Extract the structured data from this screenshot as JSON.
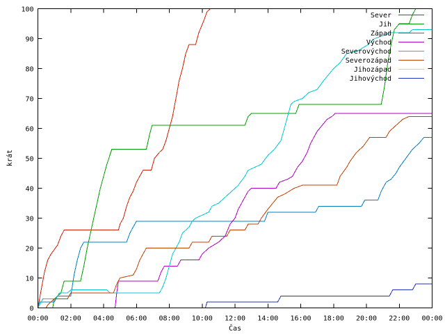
{
  "chart_data": {
    "type": "line",
    "title": "",
    "xlabel": "Čas",
    "ylabel": "krát",
    "xlim": [
      0,
      24
    ],
    "ylim": [
      0,
      100
    ],
    "x_unit": "hours",
    "x_tick_labels": [
      "00:00",
      "02:00",
      "04:00",
      "06:00",
      "08:00",
      "10:00",
      "12:00",
      "14:00",
      "16:00",
      "18:00",
      "20:00",
      "22:00",
      "00:00"
    ],
    "y_ticks": [
      0,
      10,
      20,
      30,
      40,
      50,
      60,
      70,
      80,
      90,
      100
    ],
    "grid": false,
    "legend_position": "top-right",
    "series": [
      {
        "name": "Sever",
        "color": "#d02000",
        "points": [
          [
            0,
            0
          ],
          [
            0.2,
            6
          ],
          [
            0.4,
            12
          ],
          [
            0.6,
            16
          ],
          [
            0.8,
            18
          ],
          [
            1.2,
            21
          ],
          [
            1.4,
            24
          ],
          [
            1.6,
            26
          ],
          [
            4.9,
            26
          ],
          [
            5.0,
            28
          ],
          [
            5.2,
            30
          ],
          [
            5.4,
            34
          ],
          [
            5.6,
            37
          ],
          [
            5.8,
            39
          ],
          [
            6.0,
            42
          ],
          [
            6.2,
            44
          ],
          [
            6.4,
            46
          ],
          [
            6.9,
            46
          ],
          [
            7.1,
            50
          ],
          [
            7.4,
            52
          ],
          [
            7.6,
            53
          ],
          [
            7.8,
            56
          ],
          [
            8.0,
            60
          ],
          [
            8.2,
            64
          ],
          [
            8.4,
            70
          ],
          [
            8.6,
            76
          ],
          [
            8.8,
            80
          ],
          [
            9.0,
            85
          ],
          [
            9.2,
            88
          ],
          [
            9.6,
            88
          ],
          [
            9.8,
            92
          ],
          [
            10.1,
            96
          ],
          [
            10.3,
            99
          ],
          [
            10.5,
            100
          ]
        ]
      },
      {
        "name": "Jih",
        "color": "#00a000",
        "points": [
          [
            0,
            0
          ],
          [
            0.9,
            0
          ],
          [
            1.0,
            3
          ],
          [
            1.4,
            5
          ],
          [
            1.6,
            9
          ],
          [
            2.6,
            9
          ],
          [
            2.8,
            14
          ],
          [
            3.0,
            20
          ],
          [
            3.4,
            30
          ],
          [
            3.8,
            40
          ],
          [
            4.2,
            48
          ],
          [
            4.5,
            53
          ],
          [
            6.6,
            53
          ],
          [
            6.8,
            58
          ],
          [
            6.95,
            61
          ],
          [
            12.6,
            61
          ],
          [
            12.8,
            64
          ],
          [
            13.0,
            65
          ],
          [
            15.7,
            65
          ],
          [
            15.9,
            68
          ],
          [
            20.9,
            68
          ],
          [
            21.1,
            74
          ],
          [
            21.3,
            82
          ],
          [
            21.5,
            88
          ],
          [
            21.7,
            93
          ],
          [
            22.0,
            95
          ],
          [
            22.6,
            95
          ],
          [
            22.8,
            98
          ],
          [
            23.0,
            100
          ]
        ]
      },
      {
        "name": "Západ",
        "color": "#0080c0",
        "points": [
          [
            0,
            0
          ],
          [
            0.1,
            2
          ],
          [
            1.0,
            2
          ],
          [
            1.2,
            4
          ],
          [
            2.0,
            4
          ],
          [
            2.2,
            11
          ],
          [
            2.4,
            16
          ],
          [
            2.6,
            20
          ],
          [
            2.8,
            22
          ],
          [
            5.4,
            22
          ],
          [
            5.6,
            25
          ],
          [
            5.8,
            27
          ],
          [
            6.0,
            29
          ],
          [
            13.8,
            29
          ],
          [
            14.0,
            32
          ],
          [
            16.9,
            32
          ],
          [
            17.1,
            34
          ],
          [
            19.7,
            34
          ],
          [
            19.9,
            36
          ],
          [
            20.7,
            36
          ],
          [
            20.9,
            39
          ],
          [
            21.2,
            42
          ],
          [
            21.5,
            43
          ],
          [
            21.8,
            45
          ],
          [
            22.0,
            47
          ],
          [
            22.4,
            50
          ],
          [
            22.8,
            53
          ],
          [
            23.2,
            55
          ],
          [
            23.5,
            57
          ],
          [
            24,
            57
          ]
        ]
      },
      {
        "name": "Východ",
        "color": "#b000c0",
        "points": [
          [
            4.7,
            0
          ],
          [
            4.8,
            5
          ],
          [
            4.9,
            9
          ],
          [
            7.3,
            9
          ],
          [
            7.5,
            12
          ],
          [
            7.7,
            14
          ],
          [
            8.5,
            14
          ],
          [
            8.7,
            16
          ],
          [
            9.8,
            16
          ],
          [
            10.0,
            18
          ],
          [
            10.4,
            20
          ],
          [
            11.0,
            22
          ],
          [
            11.4,
            24
          ],
          [
            11.7,
            28
          ],
          [
            12.0,
            30
          ],
          [
            12.2,
            33
          ],
          [
            12.4,
            35
          ],
          [
            12.6,
            37
          ],
          [
            12.8,
            39
          ],
          [
            13.0,
            40
          ],
          [
            14.5,
            40
          ],
          [
            14.7,
            42
          ],
          [
            15.2,
            43
          ],
          [
            15.5,
            44
          ],
          [
            15.8,
            47
          ],
          [
            16.1,
            49
          ],
          [
            16.4,
            52
          ],
          [
            16.6,
            55
          ],
          [
            16.8,
            57
          ],
          [
            17.0,
            59
          ],
          [
            17.3,
            61
          ],
          [
            17.6,
            63
          ],
          [
            17.9,
            64
          ],
          [
            18.1,
            65
          ],
          [
            24,
            65
          ]
        ]
      },
      {
        "name": "Severovýchod",
        "color": "#00c8d0",
        "points": [
          [
            0,
            0
          ],
          [
            0.1,
            1
          ],
          [
            0.3,
            3
          ],
          [
            1.1,
            3
          ],
          [
            1.3,
            5
          ],
          [
            1.8,
            5
          ],
          [
            2.0,
            6
          ],
          [
            4.2,
            6
          ],
          [
            4.4,
            5
          ],
          [
            7.4,
            5
          ],
          [
            7.6,
            7
          ],
          [
            7.8,
            10
          ],
          [
            8.0,
            14
          ],
          [
            8.2,
            18
          ],
          [
            8.4,
            20
          ],
          [
            8.6,
            22
          ],
          [
            8.8,
            25
          ],
          [
            9.2,
            27
          ],
          [
            9.4,
            29
          ],
          [
            9.6,
            30
          ],
          [
            10.4,
            32
          ],
          [
            10.6,
            34
          ],
          [
            11.0,
            35
          ],
          [
            11.4,
            37
          ],
          [
            11.8,
            39
          ],
          [
            12.2,
            41
          ],
          [
            12.6,
            44
          ],
          [
            12.8,
            46
          ],
          [
            13.6,
            48
          ],
          [
            14.0,
            51
          ],
          [
            14.4,
            53
          ],
          [
            14.8,
            56
          ],
          [
            15.0,
            60
          ],
          [
            15.2,
            64
          ],
          [
            15.4,
            68
          ],
          [
            15.6,
            69
          ],
          [
            16.1,
            70
          ],
          [
            16.5,
            72
          ],
          [
            17.0,
            73
          ],
          [
            17.4,
            76
          ],
          [
            17.7,
            78
          ],
          [
            18.0,
            80
          ],
          [
            18.4,
            82
          ],
          [
            18.8,
            85
          ],
          [
            19.5,
            86
          ],
          [
            20.1,
            88
          ],
          [
            20.5,
            90
          ],
          [
            21.0,
            91
          ],
          [
            21.5,
            92
          ],
          [
            22.6,
            92
          ],
          [
            22.8,
            93
          ],
          [
            24,
            93
          ]
        ]
      },
      {
        "name": "Severozápad",
        "color": "#c04000",
        "points": [
          [
            0.5,
            0
          ],
          [
            0.6,
            1
          ],
          [
            0.8,
            2
          ],
          [
            1.0,
            3
          ],
          [
            1.8,
            3
          ],
          [
            2.0,
            5
          ],
          [
            4.6,
            5
          ],
          [
            4.8,
            8
          ],
          [
            5.0,
            10
          ],
          [
            5.8,
            11
          ],
          [
            6.0,
            13
          ],
          [
            6.2,
            16
          ],
          [
            6.4,
            18
          ],
          [
            6.6,
            20
          ],
          [
            9.2,
            20
          ],
          [
            9.4,
            22
          ],
          [
            10.4,
            22
          ],
          [
            10.6,
            24
          ],
          [
            11.5,
            24
          ],
          [
            11.7,
            26
          ],
          [
            12.6,
            26
          ],
          [
            12.8,
            28
          ],
          [
            13.4,
            28
          ],
          [
            13.6,
            30
          ],
          [
            14.0,
            33
          ],
          [
            14.3,
            35
          ],
          [
            14.6,
            37
          ],
          [
            15.0,
            38
          ],
          [
            15.6,
            40
          ],
          [
            16.1,
            41
          ],
          [
            18.2,
            41
          ],
          [
            18.4,
            44
          ],
          [
            18.8,
            47
          ],
          [
            19.0,
            49
          ],
          [
            19.4,
            52
          ],
          [
            19.8,
            54
          ],
          [
            20.2,
            57
          ],
          [
            21.2,
            57
          ],
          [
            21.4,
            59
          ],
          [
            21.8,
            61
          ],
          [
            22.2,
            63
          ],
          [
            22.6,
            64
          ],
          [
            24,
            64
          ]
        ]
      },
      {
        "name": "Jihozápad",
        "color": "#f0e000",
        "points": [
          [
            0,
            0
          ],
          [
            24,
            0
          ]
        ]
      },
      {
        "name": "Jihovýchod",
        "color": "#2030c0",
        "points": [
          [
            10.2,
            0
          ],
          [
            10.3,
            2
          ],
          [
            14.6,
            2
          ],
          [
            14.8,
            4
          ],
          [
            21.4,
            4
          ],
          [
            21.6,
            6
          ],
          [
            22.8,
            6
          ],
          [
            23.0,
            8
          ],
          [
            24,
            8
          ]
        ]
      }
    ]
  }
}
